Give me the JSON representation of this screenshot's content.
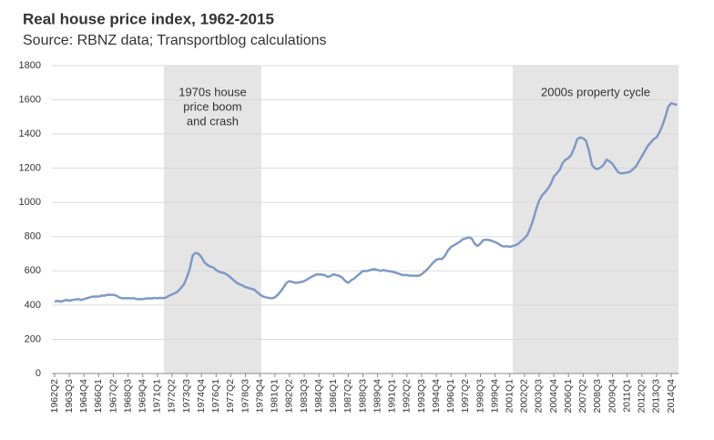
{
  "chart_data": {
    "type": "line",
    "title": "Real house price index, 1962-2015",
    "subtitle": "Source: RBNZ data; Transportblog calculations",
    "categories": [
      "1962Q2",
      null,
      null,
      null,
      null,
      "1963Q3",
      null,
      null,
      null,
      null,
      "1964Q4",
      null,
      null,
      null,
      null,
      "1966Q1",
      null,
      null,
      null,
      null,
      "1967Q2",
      null,
      null,
      null,
      null,
      "1968Q3",
      null,
      null,
      null,
      null,
      "1969Q4",
      null,
      null,
      null,
      null,
      "1971Q1",
      null,
      null,
      null,
      null,
      "1972Q2",
      null,
      null,
      null,
      null,
      "1973Q3",
      null,
      null,
      null,
      null,
      "1974Q4",
      null,
      null,
      null,
      null,
      "1976Q1",
      null,
      null,
      null,
      null,
      "1977Q2",
      null,
      null,
      null,
      null,
      "1978Q3",
      null,
      null,
      null,
      null,
      "1979Q4",
      null,
      null,
      null,
      null,
      "1981Q1",
      null,
      null,
      null,
      null,
      "1982Q2",
      null,
      null,
      null,
      null,
      "1983Q3",
      null,
      null,
      null,
      null,
      "1984Q4",
      null,
      null,
      null,
      null,
      "1986Q1",
      null,
      null,
      null,
      null,
      "1987Q2",
      null,
      null,
      null,
      null,
      "1988Q3",
      null,
      null,
      null,
      null,
      "1989Q4",
      null,
      null,
      null,
      null,
      "1991Q1",
      null,
      null,
      null,
      null,
      "1992Q2",
      null,
      null,
      null,
      null,
      "1993Q3",
      null,
      null,
      null,
      null,
      "1994Q4",
      null,
      null,
      null,
      null,
      "1996Q1",
      null,
      null,
      null,
      null,
      "1997Q2",
      null,
      null,
      null,
      null,
      "1998Q3",
      null,
      null,
      null,
      null,
      "1999Q4",
      null,
      null,
      null,
      null,
      "2001Q1",
      null,
      null,
      null,
      null,
      "2002Q2",
      null,
      null,
      null,
      null,
      "2003Q3",
      null,
      null,
      null,
      null,
      "2004Q4",
      null,
      null,
      null,
      null,
      "2006Q1",
      null,
      null,
      null,
      null,
      "2007Q2",
      null,
      null,
      null,
      null,
      "2008Q3",
      null,
      null,
      null,
      null,
      "2009Q4",
      null,
      null,
      null,
      null,
      "2011Q1",
      null,
      null,
      null,
      null,
      "2012Q2",
      null,
      null,
      null,
      null,
      "2013Q3",
      null,
      null,
      null,
      null,
      "2014Q4",
      null,
      null
    ],
    "values": [
      420,
      425,
      420,
      425,
      430,
      425,
      430,
      432,
      435,
      430,
      435,
      440,
      445,
      450,
      450,
      450,
      455,
      455,
      460,
      460,
      460,
      455,
      445,
      440,
      440,
      440,
      440,
      440,
      435,
      435,
      435,
      438,
      440,
      438,
      442,
      440,
      442,
      440,
      445,
      455,
      462,
      470,
      480,
      500,
      520,
      560,
      610,
      690,
      705,
      700,
      680,
      650,
      635,
      625,
      620,
      605,
      595,
      590,
      585,
      575,
      560,
      545,
      530,
      522,
      515,
      505,
      500,
      495,
      490,
      475,
      460,
      450,
      445,
      442,
      440,
      445,
      460,
      480,
      505,
      530,
      540,
      535,
      530,
      532,
      535,
      540,
      550,
      560,
      570,
      578,
      580,
      578,
      575,
      565,
      570,
      580,
      575,
      570,
      560,
      540,
      530,
      545,
      555,
      570,
      585,
      600,
      598,
      602,
      608,
      610,
      605,
      600,
      605,
      600,
      598,
      595,
      590,
      585,
      578,
      575,
      575,
      572,
      572,
      572,
      572,
      580,
      595,
      610,
      630,
      650,
      665,
      670,
      670,
      690,
      720,
      740,
      750,
      760,
      770,
      785,
      790,
      795,
      790,
      760,
      745,
      760,
      780,
      782,
      780,
      775,
      768,
      760,
      748,
      742,
      745,
      740,
      745,
      750,
      760,
      775,
      790,
      810,
      850,
      900,
      960,
      1010,
      1040,
      1060,
      1080,
      1110,
      1150,
      1170,
      1190,
      1230,
      1250,
      1260,
      1280,
      1320,
      1370,
      1380,
      1375,
      1360,
      1300,
      1220,
      1200,
      1195,
      1205,
      1220,
      1250,
      1240,
      1225,
      1200,
      1175,
      1170,
      1172,
      1175,
      1180,
      1195,
      1210,
      1240,
      1270,
      1300,
      1330,
      1350,
      1370,
      1380,
      1410,
      1450,
      1500,
      1560,
      1580,
      1575,
      1570
    ],
    "color": "#7d9ac6",
    "ylim": [
      0,
      1800
    ],
    "yticks": [
      0,
      200,
      400,
      600,
      800,
      1000,
      1200,
      1400,
      1600,
      1800
    ],
    "grid": true,
    "shaded_regions": [
      {
        "from": 37.2,
        "to": 70.4,
        "label": [
          "1970s house",
          "price boom",
          "and crash"
        ]
      },
      {
        "from": 156,
        "to": 212.5,
        "label": [
          "2000s property cycle"
        ]
      }
    ]
  }
}
